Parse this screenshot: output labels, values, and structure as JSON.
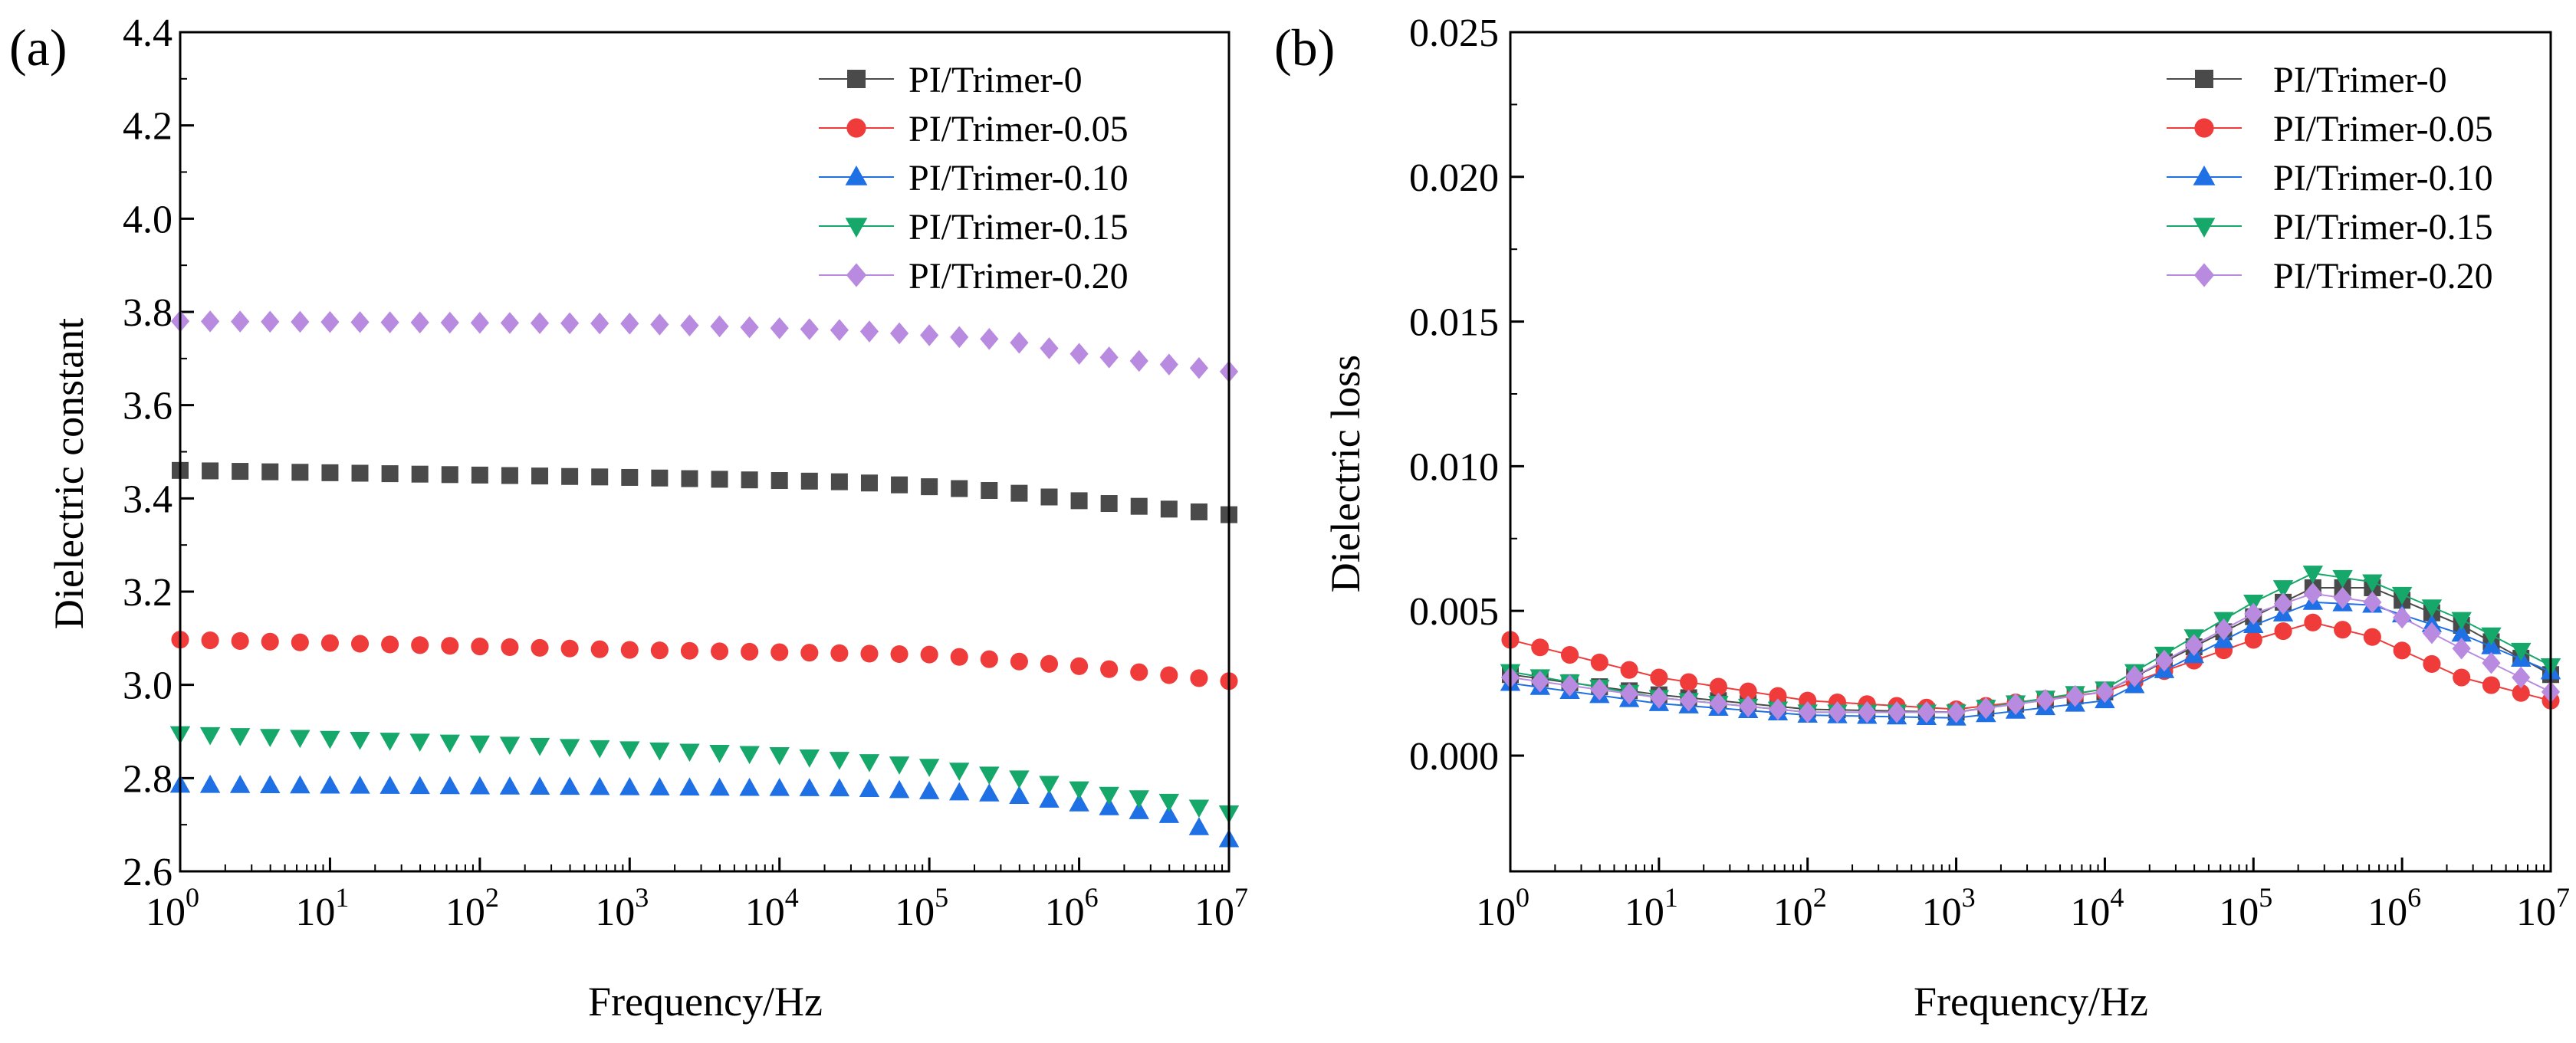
{
  "chart_data": [
    {
      "panel_label": "(a)",
      "type": "scatter",
      "title": "",
      "xlabel": "Frequency/Hz",
      "ylabel": "Dielectric constant",
      "xscale": "log",
      "xlim": [
        1,
        10000000
      ],
      "ylim": [
        2.6,
        4.4
      ],
      "x_ticks": [
        {
          "base": "10",
          "exp": "0"
        },
        {
          "base": "10",
          "exp": "1"
        },
        {
          "base": "10",
          "exp": "2"
        },
        {
          "base": "10",
          "exp": "3"
        },
        {
          "base": "10",
          "exp": "4"
        },
        {
          "base": "10",
          "exp": "5"
        },
        {
          "base": "10",
          "exp": "6"
        },
        {
          "base": "10",
          "exp": "7"
        }
      ],
      "y_ticks": [
        "2.6",
        "2.8",
        "3.0",
        "3.2",
        "3.4",
        "3.6",
        "3.8",
        "4.0",
        "4.2",
        "4.4"
      ],
      "legend_position": "top-right",
      "grid": false,
      "series": [
        {
          "name": "PI/Trimer-0",
          "color": "#4a4a4a",
          "marker": "square",
          "log_x": [
            0,
            7
          ],
          "step": 0.2,
          "knots": [
            [
              0,
              3.46
            ],
            [
              3,
              3.445
            ],
            [
              4.5,
              3.435
            ],
            [
              5.5,
              3.415
            ],
            [
              6,
              3.395
            ],
            [
              7,
              3.365
            ]
          ]
        },
        {
          "name": "PI/Trimer-0.05",
          "color": "#ef3b3a",
          "marker": "circle",
          "log_x": [
            0,
            7
          ],
          "step": 0.2,
          "knots": [
            [
              0,
              3.097
            ],
            [
              3,
              3.075
            ],
            [
              5,
              3.065
            ],
            [
              6,
              3.04
            ],
            [
              7,
              3.008
            ]
          ]
        },
        {
          "name": "PI/Trimer-0.10",
          "color": "#1f6fe5",
          "marker": "triangle-up",
          "log_x": [
            0,
            7
          ],
          "step": 0.2,
          "knots": [
            [
              0,
              2.785
            ],
            [
              4.5,
              2.777
            ],
            [
              5.5,
              2.765
            ],
            [
              6,
              2.745
            ],
            [
              6.6,
              2.72
            ],
            [
              7,
              2.668
            ]
          ]
        },
        {
          "name": "PI/Trimer-0.15",
          "color": "#16a86a",
          "marker": "triangle-down",
          "log_x": [
            0,
            7
          ],
          "step": 0.2,
          "knots": [
            [
              0,
              2.895
            ],
            [
              2,
              2.875
            ],
            [
              4,
              2.85
            ],
            [
              5,
              2.825
            ],
            [
              5.6,
              2.8
            ],
            [
              6.2,
              2.765
            ],
            [
              6.6,
              2.75
            ],
            [
              7,
              2.725
            ]
          ]
        },
        {
          "name": "PI/Trimer-0.20",
          "color": "#b98be0",
          "marker": "diamond",
          "log_x": [
            0,
            7
          ],
          "step": 0.2,
          "knots": [
            [
              0,
              3.78
            ],
            [
              3,
              3.775
            ],
            [
              4.5,
              3.76
            ],
            [
              5.5,
              3.74
            ],
            [
              6,
              3.71
            ],
            [
              7,
              3.672
            ]
          ]
        }
      ]
    },
    {
      "panel_label": "(b)",
      "type": "line",
      "title": "",
      "xlabel": "Frequency/Hz",
      "ylabel": "Dielectric loss",
      "xscale": "log",
      "xlim": [
        1,
        10000000
      ],
      "ylim": [
        -0.004,
        0.025
      ],
      "x_ticks": [
        {
          "base": "10",
          "exp": "0"
        },
        {
          "base": "10",
          "exp": "1"
        },
        {
          "base": "10",
          "exp": "2"
        },
        {
          "base": "10",
          "exp": "3"
        },
        {
          "base": "10",
          "exp": "4"
        },
        {
          "base": "10",
          "exp": "5"
        },
        {
          "base": "10",
          "exp": "6"
        },
        {
          "base": "10",
          "exp": "7"
        }
      ],
      "y_ticks": [
        "0.000",
        "0.005",
        "0.010",
        "0.015",
        "0.020",
        "0.025"
      ],
      "legend_position": "top-right",
      "grid": false,
      "series": [
        {
          "name": "PI/Trimer-0",
          "color": "#4a4a4a",
          "marker": "square",
          "log_x": [
            0,
            7
          ],
          "step": 0.2,
          "knots": [
            [
              0,
              0.0028
            ],
            [
              1,
              0.0021
            ],
            [
              2,
              0.0016
            ],
            [
              3,
              0.0015
            ],
            [
              4,
              0.0022
            ],
            [
              5,
              0.0048
            ],
            [
              5.4,
              0.0058
            ],
            [
              5.8,
              0.0058
            ],
            [
              6.4,
              0.0045
            ],
            [
              7,
              0.0028
            ]
          ]
        },
        {
          "name": "PI/Trimer-0.05",
          "color": "#ef3b3a",
          "marker": "circle",
          "log_x": [
            0,
            7
          ],
          "step": 0.2,
          "knots": [
            [
              0,
              0.004
            ],
            [
              1,
              0.0027
            ],
            [
              2,
              0.0019
            ],
            [
              3,
              0.0016
            ],
            [
              4,
              0.0022
            ],
            [
              5,
              0.004
            ],
            [
              5.4,
              0.0046
            ],
            [
              5.8,
              0.0041
            ],
            [
              6.4,
              0.0027
            ],
            [
              7,
              0.0019
            ]
          ]
        },
        {
          "name": "PI/Trimer-0.10",
          "color": "#1f6fe5",
          "marker": "triangle-up",
          "log_x": [
            0,
            7
          ],
          "step": 0.2,
          "knots": [
            [
              0,
              0.0025
            ],
            [
              1,
              0.0018
            ],
            [
              2,
              0.0014
            ],
            [
              3,
              0.0013
            ],
            [
              4,
              0.0019
            ],
            [
              5,
              0.0045
            ],
            [
              5.4,
              0.0053
            ],
            [
              5.8,
              0.0052
            ],
            [
              6.4,
              0.0042
            ],
            [
              7,
              0.0029
            ]
          ]
        },
        {
          "name": "PI/Trimer-0.15",
          "color": "#16a86a",
          "marker": "triangle-down",
          "log_x": [
            0,
            7
          ],
          "step": 0.2,
          "knots": [
            [
              0,
              0.0029
            ],
            [
              1,
              0.002
            ],
            [
              2,
              0.0015
            ],
            [
              3,
              0.0015
            ],
            [
              4,
              0.0023
            ],
            [
              5,
              0.0053
            ],
            [
              5.4,
              0.0063
            ],
            [
              5.8,
              0.006
            ],
            [
              6.4,
              0.0047
            ],
            [
              7,
              0.0031
            ]
          ]
        },
        {
          "name": "PI/Trimer-0.20",
          "color": "#b98be0",
          "marker": "diamond",
          "log_x": [
            0,
            7
          ],
          "step": 0.2,
          "knots": [
            [
              0,
              0.0027
            ],
            [
              1,
              0.002
            ],
            [
              2,
              0.0015
            ],
            [
              3,
              0.0015
            ],
            [
              4,
              0.0022
            ],
            [
              5,
              0.0049
            ],
            [
              5.4,
              0.0056
            ],
            [
              5.8,
              0.0053
            ],
            [
              6.4,
              0.0037
            ],
            [
              7,
              0.0022
            ]
          ]
        }
      ]
    }
  ]
}
